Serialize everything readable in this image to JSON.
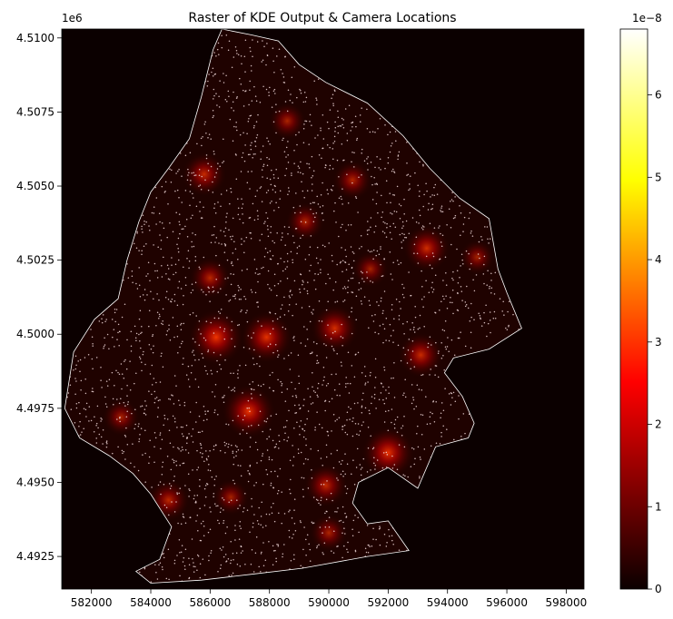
{
  "chart_data": {
    "type": "heatmap",
    "title": "Raster of KDE Output & Camera Locations",
    "xlabel": "",
    "ylabel": "",
    "xlim": [
      581000,
      598600
    ],
    "ylim": [
      4491400,
      4510300
    ],
    "x_ticks": [
      582000,
      584000,
      586000,
      588000,
      590000,
      592000,
      594000,
      596000,
      598000
    ],
    "x_tick_labels": [
      "582000",
      "584000",
      "586000",
      "588000",
      "590000",
      "592000",
      "594000",
      "596000",
      "598000"
    ],
    "y_ticks": [
      4492500,
      4495000,
      4497500,
      4500000,
      4502500,
      4505000,
      4507500,
      4510000
    ],
    "y_tick_labels": [
      "4.4925",
      "4.4950",
      "4.4975",
      "4.5000",
      "4.5025",
      "4.5050",
      "4.5075",
      "4.5100"
    ],
    "y_offset_text": "1e6",
    "colorbar": {
      "colormap": "hot",
      "range": [
        0,
        6.8
      ],
      "ticks": [
        0,
        1,
        2,
        3,
        4,
        5,
        6
      ],
      "tick_labels": [
        "0",
        "1",
        "2",
        "3",
        "4",
        "5",
        "6"
      ],
      "offset_text": "1e−8"
    },
    "hotspots": [
      {
        "x": 586200,
        "y": 4499900,
        "value": 3.6
      },
      {
        "x": 587900,
        "y": 4499900,
        "value": 3.2
      },
      {
        "x": 587300,
        "y": 4497400,
        "value": 3.4
      },
      {
        "x": 592000,
        "y": 4496000,
        "value": 3.3
      },
      {
        "x": 590200,
        "y": 4500200,
        "value": 2.7
      },
      {
        "x": 593300,
        "y": 4502900,
        "value": 2.6
      },
      {
        "x": 593100,
        "y": 4499300,
        "value": 2.4
      },
      {
        "x": 585800,
        "y": 4505400,
        "value": 2.3
      },
      {
        "x": 589900,
        "y": 4494900,
        "value": 2.2
      },
      {
        "x": 584600,
        "y": 4494400,
        "value": 2.0
      },
      {
        "x": 586000,
        "y": 4501900,
        "value": 1.9
      },
      {
        "x": 590800,
        "y": 4505200,
        "value": 1.7
      },
      {
        "x": 589200,
        "y": 4503800,
        "value": 1.6
      },
      {
        "x": 588600,
        "y": 4507200,
        "value": 1.4
      },
      {
        "x": 590000,
        "y": 4493300,
        "value": 1.5
      },
      {
        "x": 583000,
        "y": 4497200,
        "value": 1.4
      },
      {
        "x": 586700,
        "y": 4494500,
        "value": 1.3
      },
      {
        "x": 591400,
        "y": 4502200,
        "value": 1.3
      },
      {
        "x": 595000,
        "y": 4502600,
        "value": 1.2
      }
    ],
    "boundary": [
      [
        586400,
        4510300
      ],
      [
        587400,
        4510100
      ],
      [
        588300,
        4509900
      ],
      [
        589000,
        4509100
      ],
      [
        589900,
        4508500
      ],
      [
        591300,
        4507800
      ],
      [
        592500,
        4506700
      ],
      [
        593400,
        4505600
      ],
      [
        594400,
        4504600
      ],
      [
        595400,
        4503900
      ],
      [
        595700,
        4502200
      ],
      [
        596000,
        4501400
      ],
      [
        596500,
        4500200
      ],
      [
        595400,
        4499500
      ],
      [
        594200,
        4499200
      ],
      [
        593900,
        4498700
      ],
      [
        594500,
        4497900
      ],
      [
        594900,
        4497000
      ],
      [
        594700,
        4496500
      ],
      [
        593600,
        4496200
      ],
      [
        593000,
        4494800
      ],
      [
        592000,
        4495500
      ],
      [
        591000,
        4495000
      ],
      [
        590800,
        4494300
      ],
      [
        591300,
        4493600
      ],
      [
        592000,
        4493700
      ],
      [
        592700,
        4492700
      ],
      [
        591300,
        4492500
      ],
      [
        589100,
        4492100
      ],
      [
        587400,
        4491900
      ],
      [
        585700,
        4491700
      ],
      [
        584000,
        4491600
      ],
      [
        583500,
        4492000
      ],
      [
        584300,
        4492400
      ],
      [
        584700,
        4493500
      ],
      [
        584000,
        4494600
      ],
      [
        583400,
        4495300
      ],
      [
        582600,
        4495900
      ],
      [
        581600,
        4496500
      ],
      [
        581100,
        4497500
      ],
      [
        581400,
        4499400
      ],
      [
        582100,
        4500500
      ],
      [
        582900,
        4501200
      ],
      [
        583200,
        4502500
      ],
      [
        583600,
        4503800
      ],
      [
        584000,
        4504800
      ],
      [
        584600,
        4505600
      ],
      [
        585300,
        4506600
      ],
      [
        585700,
        4508000
      ],
      [
        586100,
        4509600
      ],
      [
        586400,
        4510300
      ]
    ],
    "cameras_shown": true
  }
}
